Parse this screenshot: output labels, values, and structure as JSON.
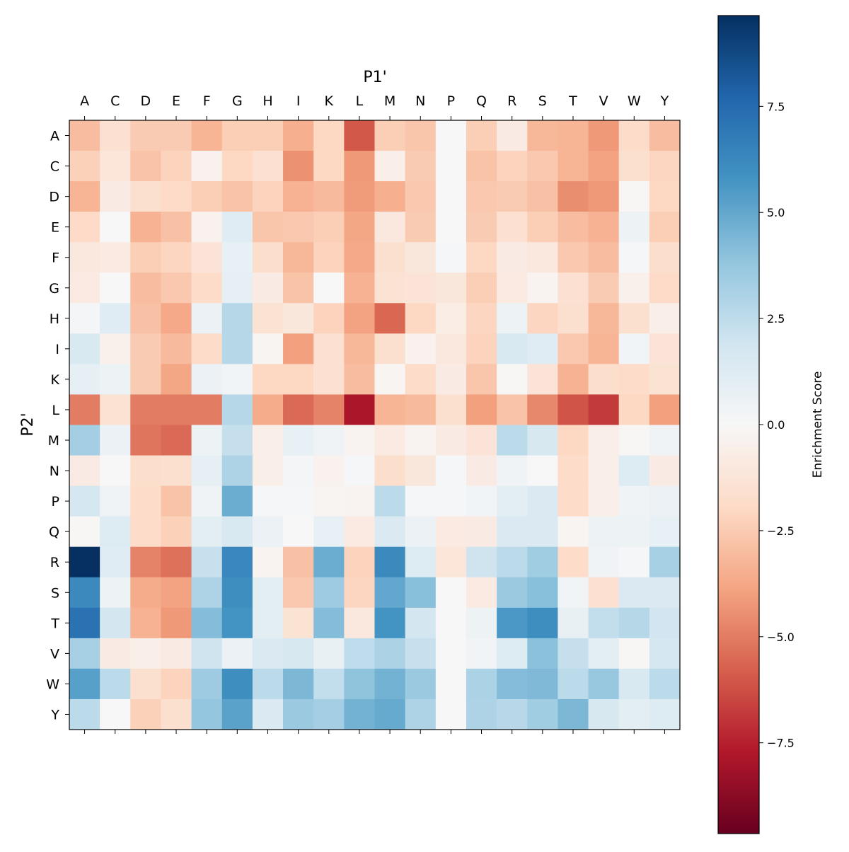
{
  "chart_data": {
    "type": "heatmap",
    "xlabel": "P1'",
    "ylabel": "P2'",
    "x_categories": [
      "A",
      "C",
      "D",
      "E",
      "F",
      "G",
      "H",
      "I",
      "K",
      "L",
      "M",
      "N",
      "P",
      "Q",
      "R",
      "S",
      "T",
      "V",
      "W",
      "Y"
    ],
    "y_categories": [
      "A",
      "C",
      "D",
      "E",
      "F",
      "G",
      "H",
      "I",
      "K",
      "L",
      "M",
      "N",
      "P",
      "Q",
      "R",
      "S",
      "T",
      "V",
      "W",
      "Y"
    ],
    "colormap": "RdBu",
    "vmin": -9.64,
    "vmax": 9.64,
    "colorbar": {
      "label": "Enrichment Score",
      "ticks": [
        7.5,
        5.0,
        2.5,
        0.0,
        -2.5,
        -5.0,
        -7.5
      ],
      "tick_labels": [
        "7.5",
        "5.0",
        "2.5",
        "0.0",
        "−2.5",
        "−5.0",
        "−7.5"
      ]
    },
    "values": [
      [
        -3.0,
        -1.5,
        -2.5,
        -2.5,
        -3.3,
        -2.4,
        -2.4,
        -3.5,
        -2.0,
        -6.0,
        -2.4,
        -2.7,
        0.0,
        -2.4,
        -0.8,
        -3.2,
        -3.3,
        -4.2,
        -1.8,
        -3.0
      ],
      [
        -2.3,
        -1.2,
        -2.8,
        -2.2,
        -0.4,
        -2.0,
        -1.5,
        -4.4,
        -2.0,
        -4.2,
        -0.6,
        -2.5,
        0.0,
        -2.8,
        -2.2,
        -2.6,
        -3.3,
        -3.9,
        -1.6,
        -2.1
      ],
      [
        -3.3,
        -0.8,
        -1.6,
        -1.9,
        -2.4,
        -2.8,
        -2.2,
        -3.4,
        -3.1,
        -4.1,
        -3.5,
        -2.6,
        0.0,
        -2.6,
        -2.5,
        -2.9,
        -4.5,
        -4.2,
        -0.1,
        -2.0
      ],
      [
        -1.9,
        0.0,
        -3.4,
        -2.9,
        -0.4,
        1.2,
        -2.7,
        -2.6,
        -2.4,
        -3.8,
        -1.0,
        -2.5,
        0.0,
        -2.5,
        -1.5,
        -2.4,
        -3.0,
        -3.4,
        0.5,
        -2.4
      ],
      [
        -1.0,
        -0.9,
        -2.4,
        -2.1,
        -1.3,
        0.8,
        -1.7,
        -3.2,
        -2.2,
        -3.7,
        -1.6,
        -1.1,
        0.1,
        -2.0,
        -0.8,
        -1.0,
        -2.6,
        -3.0,
        0.1,
        -1.7
      ],
      [
        -0.9,
        0.0,
        -3.0,
        -2.6,
        -1.8,
        0.9,
        -0.8,
        -2.8,
        0.0,
        -3.4,
        -1.4,
        -1.3,
        -1.1,
        -2.4,
        -0.9,
        -0.3,
        -1.5,
        -2.5,
        -0.5,
        -1.9
      ],
      [
        0.2,
        1.2,
        -2.9,
        -3.7,
        0.6,
        2.8,
        -1.4,
        -1.1,
        -2.2,
        -3.9,
        -5.6,
        -2.0,
        -0.7,
        -2.1,
        0.5,
        -2.1,
        -1.6,
        -3.2,
        -1.6,
        -0.6
      ],
      [
        1.5,
        -0.5,
        -2.5,
        -3.1,
        -1.8,
        2.8,
        -0.2,
        -4.0,
        -1.5,
        -3.2,
        -1.6,
        -0.4,
        -1.0,
        -2.2,
        1.5,
        1.2,
        -2.6,
        -3.3,
        0.3,
        -1.3
      ],
      [
        0.9,
        0.5,
        -2.5,
        -3.8,
        0.6,
        0.3,
        -2.0,
        -2.0,
        -1.5,
        -3.0,
        -0.2,
        -1.8,
        -0.8,
        -2.7,
        -0.1,
        -1.3,
        -3.4,
        -1.7,
        -1.8,
        -1.4
      ],
      [
        -5.0,
        -1.4,
        -5.0,
        -5.0,
        -5.0,
        2.8,
        -3.6,
        -5.5,
        -4.8,
        -7.9,
        -3.3,
        -3.1,
        -1.6,
        -4.0,
        -2.8,
        -4.7,
        -6.1,
        -6.8,
        -2.0,
        -4.0
      ],
      [
        3.3,
        0.6,
        -5.2,
        -5.5,
        0.5,
        2.3,
        -0.6,
        0.8,
        0.4,
        -0.3,
        -0.9,
        -0.3,
        -0.8,
        -1.3,
        2.6,
        1.6,
        -2.0,
        -0.6,
        -0.1,
        0.4
      ],
      [
        -0.8,
        0.0,
        -1.7,
        -1.6,
        0.9,
        3.0,
        -0.6,
        0.2,
        -0.4,
        0.1,
        -1.7,
        -1.1,
        0.1,
        -0.8,
        0.4,
        0.0,
        -1.8,
        -0.6,
        1.3,
        -0.8
      ],
      [
        1.7,
        0.4,
        -1.8,
        -2.8,
        0.4,
        4.8,
        0.1,
        0.1,
        -0.2,
        -0.3,
        2.6,
        0.1,
        0.1,
        0.3,
        1.0,
        1.4,
        -1.8,
        -0.6,
        0.4,
        0.6
      ],
      [
        -0.1,
        1.3,
        -1.8,
        -2.3,
        1.0,
        1.5,
        0.6,
        0.0,
        0.8,
        -0.9,
        1.4,
        0.6,
        -0.9,
        -0.8,
        1.4,
        1.4,
        -0.2,
        0.5,
        0.5,
        0.8
      ],
      [
        9.64,
        1.2,
        -4.8,
        -5.3,
        2.2,
        6.3,
        -0.3,
        -2.9,
        4.8,
        -2.2,
        6.2,
        1.3,
        -1.2,
        2.0,
        2.6,
        3.4,
        -1.8,
        0.4,
        0.1,
        3.2
      ],
      [
        6.2,
        0.5,
        -3.6,
        -3.9,
        3.0,
        6.0,
        1.0,
        -2.6,
        3.5,
        -2.1,
        5.0,
        4.1,
        0.0,
        -0.9,
        3.6,
        4.1,
        0.3,
        -1.5,
        1.4,
        1.4
      ],
      [
        7.2,
        1.8,
        -3.4,
        -4.2,
        4.2,
        5.8,
        1.0,
        -1.4,
        4.2,
        -1.0,
        5.8,
        1.8,
        0.0,
        0.5,
        5.6,
        6.0,
        0.7,
        2.4,
        2.8,
        1.9
      ],
      [
        3.2,
        -0.8,
        -0.6,
        -0.8,
        2.0,
        0.6,
        1.4,
        1.6,
        0.7,
        2.5,
        3.1,
        2.2,
        0.0,
        0.3,
        1.3,
        4.0,
        2.3,
        1.0,
        -0.1,
        1.7
      ],
      [
        5.3,
        2.6,
        -1.6,
        -2.2,
        3.5,
        6.0,
        2.6,
        4.4,
        2.4,
        3.9,
        4.6,
        3.6,
        0.0,
        3.1,
        4.2,
        4.3,
        2.6,
        3.7,
        1.5,
        2.6
      ],
      [
        2.6,
        0.0,
        -2.3,
        -1.6,
        3.8,
        5.2,
        1.4,
        3.6,
        3.3,
        4.6,
        4.9,
        3.0,
        0.0,
        3.0,
        2.7,
        3.4,
        4.4,
        1.6,
        1.0,
        1.3
      ]
    ]
  }
}
